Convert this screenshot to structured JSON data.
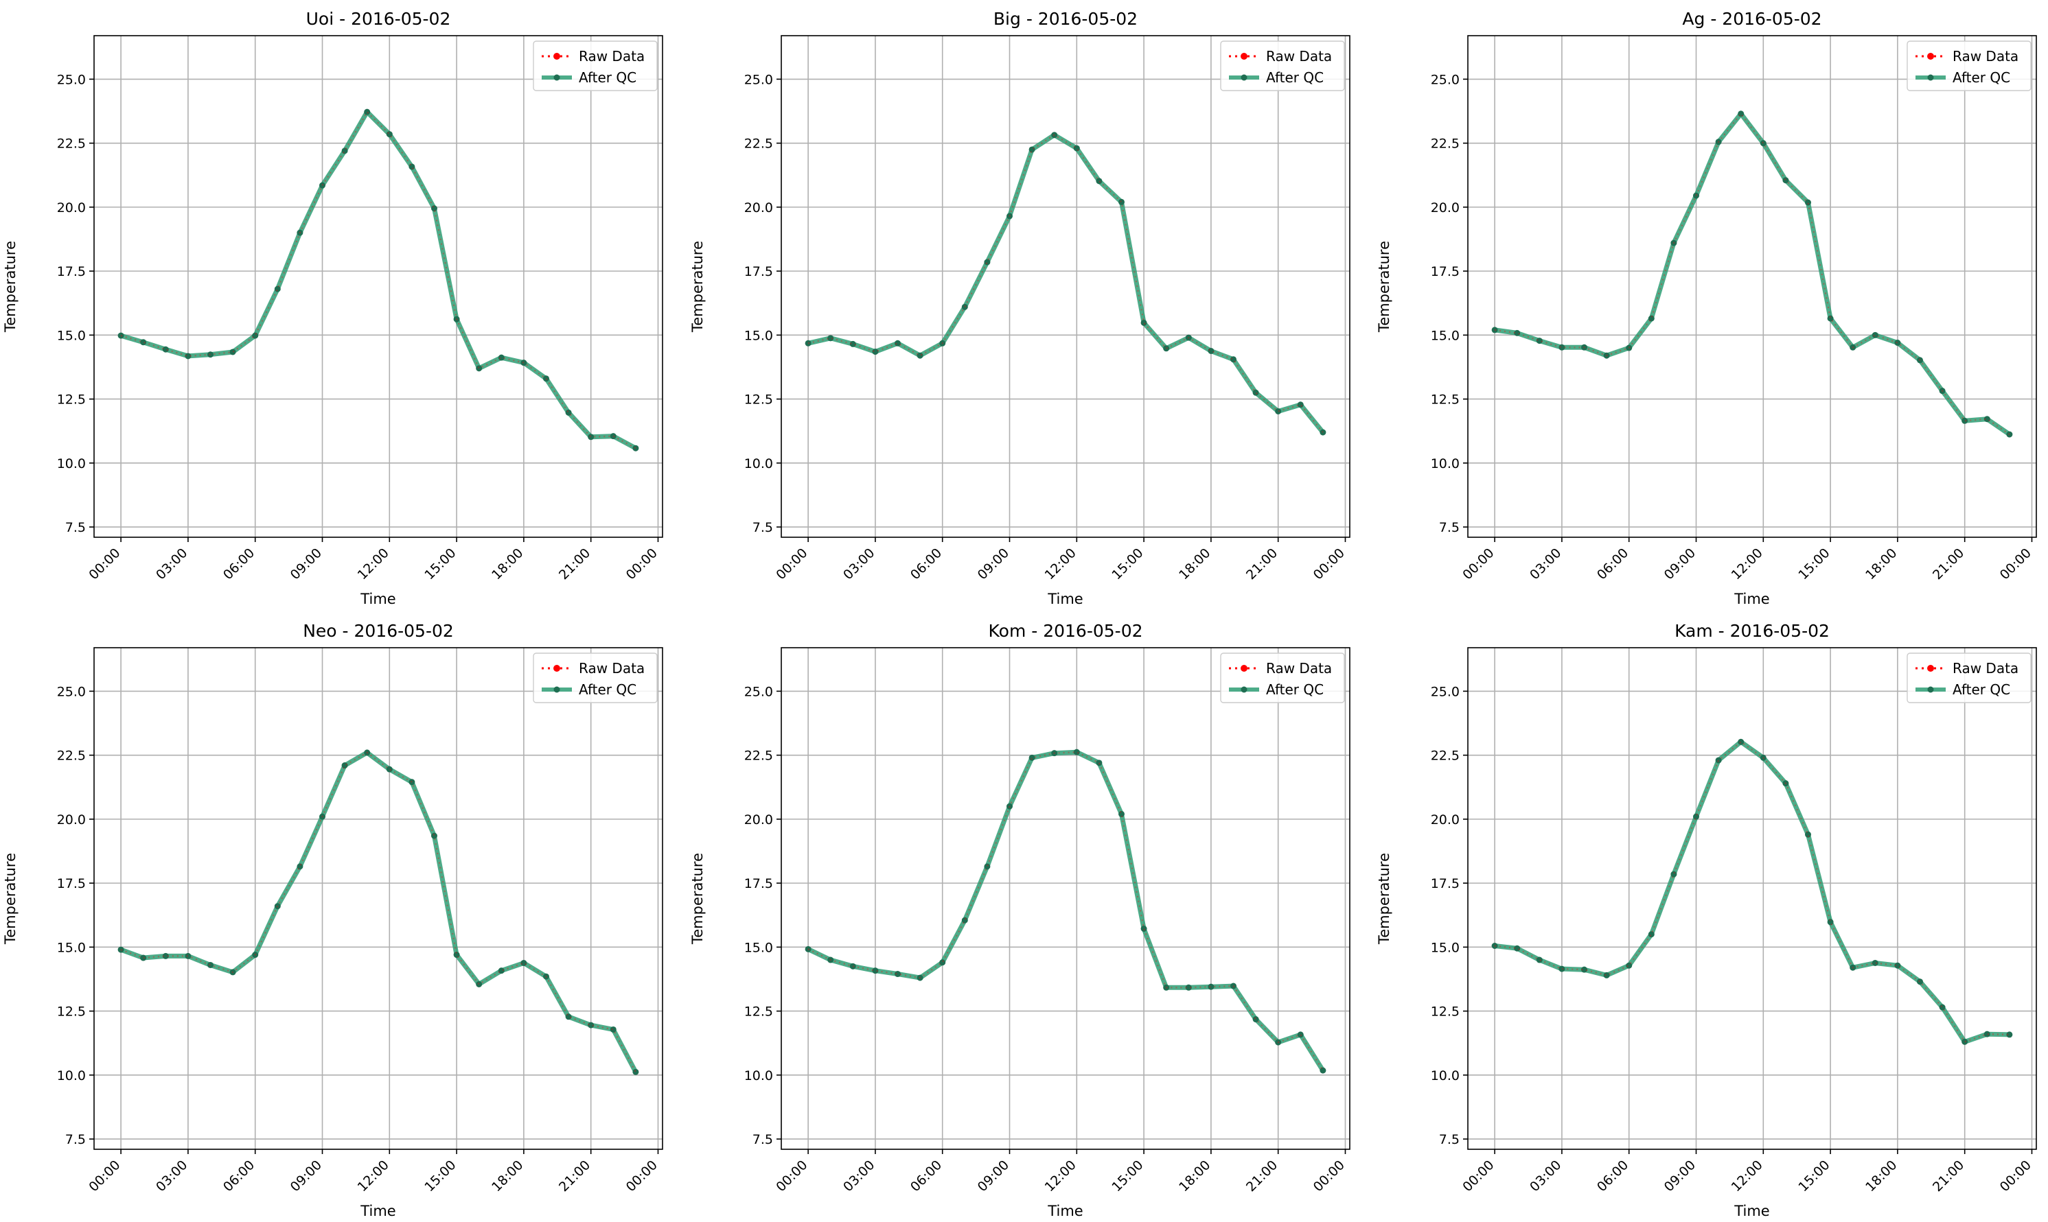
{
  "figure": {
    "colors": {
      "raw": "#ff0000",
      "qc": "#2e9e74",
      "qc_marker": "#1f6e52",
      "grid": "#b0b0b0",
      "axis": "#000000"
    }
  },
  "chart_data": [
    {
      "type": "line",
      "title": "Uoi - 2016-05-02",
      "xlabel": "Time",
      "ylabel": "Temperature",
      "xlim": [
        -1.2,
        24.2
      ],
      "ylim": [
        7.1,
        26.7
      ],
      "xticks": [
        0,
        3,
        6,
        9,
        12,
        15,
        18,
        21,
        24
      ],
      "xtick_labels": [
        "00:00",
        "03:00",
        "06:00",
        "09:00",
        "12:00",
        "15:00",
        "18:00",
        "21:00",
        "00:00"
      ],
      "yticks": [
        7.5,
        10.0,
        12.5,
        15.0,
        17.5,
        20.0,
        22.5,
        25.0
      ],
      "ytick_labels": [
        "7.5",
        "10.0",
        "12.5",
        "15.0",
        "17.5",
        "20.0",
        "22.5",
        "25.0"
      ],
      "grid": true,
      "legend": "top-right",
      "x": [
        0,
        1,
        2,
        3,
        4,
        5,
        6,
        7,
        8,
        9,
        10,
        11,
        12,
        13,
        14,
        15,
        16,
        17,
        18,
        19,
        20,
        21,
        22,
        23
      ],
      "series": [
        {
          "name": "Raw Data",
          "values": [
            14.98,
            14.72,
            14.44,
            14.18,
            14.24,
            14.34,
            14.98,
            16.8,
            19.0,
            20.85,
            22.2,
            23.72,
            22.85,
            21.58,
            19.95,
            15.62,
            13.7,
            14.12,
            13.92,
            13.3,
            11.97,
            11.02,
            11.05,
            10.58
          ]
        },
        {
          "name": "After QC",
          "values": [
            14.98,
            14.72,
            14.44,
            14.18,
            14.24,
            14.34,
            14.98,
            16.8,
            19.0,
            20.85,
            22.2,
            23.72,
            22.85,
            21.58,
            19.95,
            15.62,
            13.7,
            14.12,
            13.92,
            13.3,
            11.97,
            11.02,
            11.05,
            10.58
          ]
        }
      ]
    },
    {
      "type": "line",
      "title": "Big - 2016-05-02",
      "xlabel": "Time",
      "ylabel": "Temperature",
      "xlim": [
        -1.2,
        24.2
      ],
      "ylim": [
        7.1,
        26.7
      ],
      "xticks": [
        0,
        3,
        6,
        9,
        12,
        15,
        18,
        21,
        24
      ],
      "xtick_labels": [
        "00:00",
        "03:00",
        "06:00",
        "09:00",
        "12:00",
        "15:00",
        "18:00",
        "21:00",
        "00:00"
      ],
      "yticks": [
        7.5,
        10.0,
        12.5,
        15.0,
        17.5,
        20.0,
        22.5,
        25.0
      ],
      "ytick_labels": [
        "7.5",
        "10.0",
        "12.5",
        "15.0",
        "17.5",
        "20.0",
        "22.5",
        "25.0"
      ],
      "grid": true,
      "legend": "top-right",
      "x": [
        0,
        1,
        2,
        3,
        4,
        5,
        6,
        7,
        8,
        9,
        10,
        11,
        12,
        13,
        14,
        15,
        16,
        17,
        18,
        19,
        20,
        21,
        22,
        23
      ],
      "series": [
        {
          "name": "Raw Data",
          "values": [
            14.68,
            14.88,
            14.65,
            14.35,
            14.68,
            14.2,
            14.68,
            16.1,
            17.85,
            19.65,
            22.25,
            22.82,
            22.3,
            21.02,
            20.2,
            15.48,
            14.48,
            14.9,
            14.38,
            14.05,
            12.75,
            12.02,
            12.28,
            11.2
          ]
        },
        {
          "name": "After QC",
          "values": [
            14.68,
            14.88,
            14.65,
            14.35,
            14.68,
            14.2,
            14.68,
            16.1,
            17.85,
            19.65,
            22.25,
            22.82,
            22.3,
            21.02,
            20.2,
            15.48,
            14.48,
            14.9,
            14.38,
            14.05,
            12.75,
            12.02,
            12.28,
            11.2
          ]
        }
      ]
    },
    {
      "type": "line",
      "title": "Ag - 2016-05-02",
      "xlabel": "Time",
      "ylabel": "Temperature",
      "xlim": [
        -1.2,
        24.2
      ],
      "ylim": [
        7.1,
        26.7
      ],
      "xticks": [
        0,
        3,
        6,
        9,
        12,
        15,
        18,
        21,
        24
      ],
      "xtick_labels": [
        "00:00",
        "03:00",
        "06:00",
        "09:00",
        "12:00",
        "15:00",
        "18:00",
        "21:00",
        "00:00"
      ],
      "yticks": [
        7.5,
        10.0,
        12.5,
        15.0,
        17.5,
        20.0,
        22.5,
        25.0
      ],
      "ytick_labels": [
        "7.5",
        "10.0",
        "12.5",
        "15.0",
        "17.5",
        "20.0",
        "22.5",
        "25.0"
      ],
      "grid": true,
      "legend": "top-right",
      "x": [
        0,
        1,
        2,
        3,
        4,
        5,
        6,
        7,
        8,
        9,
        10,
        11,
        12,
        13,
        14,
        15,
        16,
        17,
        18,
        19,
        20,
        21,
        22,
        23
      ],
      "series": [
        {
          "name": "Raw Data",
          "values": [
            15.2,
            15.08,
            14.78,
            14.52,
            14.52,
            14.2,
            14.5,
            15.65,
            18.6,
            20.45,
            22.55,
            23.65,
            22.5,
            21.05,
            20.18,
            15.65,
            14.52,
            15.0,
            14.7,
            14.02,
            12.82,
            11.65,
            11.72,
            11.12
          ]
        },
        {
          "name": "After QC",
          "values": [
            15.2,
            15.08,
            14.78,
            14.52,
            14.52,
            14.2,
            14.5,
            15.65,
            18.6,
            20.45,
            22.55,
            23.65,
            22.5,
            21.05,
            20.18,
            15.65,
            14.52,
            15.0,
            14.7,
            14.02,
            12.82,
            11.65,
            11.72,
            11.12
          ]
        }
      ]
    },
    {
      "type": "line",
      "title": "Neo - 2016-05-02",
      "xlabel": "Time",
      "ylabel": "Temperature",
      "xlim": [
        -1.2,
        24.2
      ],
      "ylim": [
        7.1,
        26.7
      ],
      "xticks": [
        0,
        3,
        6,
        9,
        12,
        15,
        18,
        21,
        24
      ],
      "xtick_labels": [
        "00:00",
        "03:00",
        "06:00",
        "09:00",
        "12:00",
        "15:00",
        "18:00",
        "21:00",
        "00:00"
      ],
      "yticks": [
        7.5,
        10.0,
        12.5,
        15.0,
        17.5,
        20.0,
        22.5,
        25.0
      ],
      "ytick_labels": [
        "7.5",
        "10.0",
        "12.5",
        "15.0",
        "17.5",
        "20.0",
        "22.5",
        "25.0"
      ],
      "grid": true,
      "legend": "top-right",
      "x": [
        0,
        1,
        2,
        3,
        4,
        5,
        6,
        7,
        8,
        9,
        10,
        11,
        12,
        13,
        14,
        15,
        16,
        17,
        18,
        19,
        20,
        21,
        22,
        23
      ],
      "series": [
        {
          "name": "Raw Data",
          "values": [
            14.9,
            14.58,
            14.65,
            14.65,
            14.3,
            14.02,
            14.7,
            16.6,
            18.15,
            20.1,
            22.1,
            22.6,
            21.95,
            21.45,
            19.35,
            14.7,
            13.55,
            14.08,
            14.38,
            13.85,
            12.28,
            11.95,
            11.78,
            10.12
          ]
        },
        {
          "name": "After QC",
          "values": [
            14.9,
            14.58,
            14.65,
            14.65,
            14.3,
            14.02,
            14.7,
            16.6,
            18.15,
            20.1,
            22.1,
            22.6,
            21.95,
            21.45,
            19.35,
            14.7,
            13.55,
            14.08,
            14.38,
            13.85,
            12.28,
            11.95,
            11.78,
            10.12
          ]
        }
      ]
    },
    {
      "type": "line",
      "title": "Kom - 2016-05-02",
      "xlabel": "Time",
      "ylabel": "Temperature",
      "xlim": [
        -1.2,
        24.2
      ],
      "ylim": [
        7.1,
        26.7
      ],
      "xticks": [
        0,
        3,
        6,
        9,
        12,
        15,
        18,
        21,
        24
      ],
      "xtick_labels": [
        "00:00",
        "03:00",
        "06:00",
        "09:00",
        "12:00",
        "15:00",
        "18:00",
        "21:00",
        "00:00"
      ],
      "yticks": [
        7.5,
        10.0,
        12.5,
        15.0,
        17.5,
        20.0,
        22.5,
        25.0
      ],
      "ytick_labels": [
        "7.5",
        "10.0",
        "12.5",
        "15.0",
        "17.5",
        "20.0",
        "22.5",
        "25.0"
      ],
      "grid": true,
      "legend": "top-right",
      "x": [
        0,
        1,
        2,
        3,
        4,
        5,
        6,
        7,
        8,
        9,
        10,
        11,
        12,
        13,
        14,
        15,
        16,
        17,
        18,
        19,
        20,
        21,
        22,
        23
      ],
      "series": [
        {
          "name": "Raw Data",
          "values": [
            14.92,
            14.5,
            14.25,
            14.08,
            13.95,
            13.8,
            14.4,
            16.05,
            18.15,
            20.5,
            22.4,
            22.58,
            22.62,
            22.2,
            20.2,
            15.72,
            13.42,
            13.42,
            13.45,
            13.48,
            12.18,
            11.28,
            11.58,
            10.18
          ]
        },
        {
          "name": "After QC",
          "values": [
            14.92,
            14.5,
            14.25,
            14.08,
            13.95,
            13.8,
            14.4,
            16.05,
            18.15,
            20.5,
            22.4,
            22.58,
            22.62,
            22.2,
            20.2,
            15.72,
            13.42,
            13.42,
            13.45,
            13.48,
            12.18,
            11.28,
            11.58,
            10.18
          ]
        }
      ]
    },
    {
      "type": "line",
      "title": "Kam - 2016-05-02",
      "xlabel": "Time",
      "ylabel": "Temperature",
      "xlim": [
        -1.2,
        24.2
      ],
      "ylim": [
        7.1,
        26.7
      ],
      "xticks": [
        0,
        3,
        6,
        9,
        12,
        15,
        18,
        21,
        24
      ],
      "xtick_labels": [
        "00:00",
        "03:00",
        "06:00",
        "09:00",
        "12:00",
        "15:00",
        "18:00",
        "21:00",
        "00:00"
      ],
      "yticks": [
        7.5,
        10.0,
        12.5,
        15.0,
        17.5,
        20.0,
        22.5,
        25.0
      ],
      "ytick_labels": [
        "7.5",
        "10.0",
        "12.5",
        "15.0",
        "17.5",
        "20.0",
        "22.5",
        "25.0"
      ],
      "grid": true,
      "legend": "top-right",
      "x": [
        0,
        1,
        2,
        3,
        4,
        5,
        6,
        7,
        8,
        9,
        10,
        11,
        12,
        13,
        14,
        15,
        16,
        17,
        18,
        19,
        20,
        21,
        22,
        23
      ],
      "series": [
        {
          "name": "Raw Data",
          "values": [
            15.05,
            14.95,
            14.5,
            14.15,
            14.12,
            13.9,
            14.28,
            15.5,
            17.85,
            20.1,
            22.3,
            23.02,
            22.4,
            21.4,
            19.4,
            15.98,
            14.2,
            14.38,
            14.28,
            13.65,
            12.65,
            11.3,
            11.6,
            11.58
          ]
        },
        {
          "name": "After QC",
          "values": [
            15.05,
            14.95,
            14.5,
            14.15,
            14.12,
            13.9,
            14.28,
            15.5,
            17.85,
            20.1,
            22.3,
            23.02,
            22.4,
            21.4,
            19.4,
            15.98,
            14.2,
            14.38,
            14.28,
            13.65,
            12.65,
            11.3,
            11.6,
            11.58
          ]
        }
      ]
    }
  ]
}
